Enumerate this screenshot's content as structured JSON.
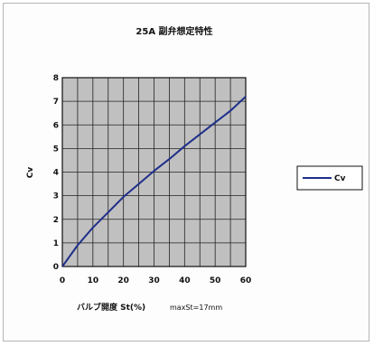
{
  "chart_data": {
    "type": "line",
    "title": "25A 副弁想定特性",
    "xlabel": "バルブ開度 St(%)",
    "xlabel_note": "maxSt=17mm",
    "ylabel": "Cv",
    "xlim": [
      0,
      60
    ],
    "ylim": [
      0,
      8
    ],
    "x_ticks": [
      "0",
      "10",
      "20",
      "30",
      "40",
      "50",
      "60"
    ],
    "y_ticks": [
      "0",
      "1",
      "2",
      "3",
      "4",
      "5",
      "6",
      "7",
      "8"
    ],
    "grid": true,
    "plot_background": "#c0c0c0",
    "legend_position": "right",
    "series": [
      {
        "name": "Cv",
        "color": "#1f2f8a",
        "x": [
          0,
          5,
          10,
          15,
          20,
          25,
          30,
          35,
          40,
          45,
          50,
          55,
          60
        ],
        "y": [
          0,
          0.9,
          1.65,
          2.3,
          2.95,
          3.5,
          4.05,
          4.55,
          5.1,
          5.6,
          6.1,
          6.6,
          7.2
        ]
      }
    ]
  }
}
